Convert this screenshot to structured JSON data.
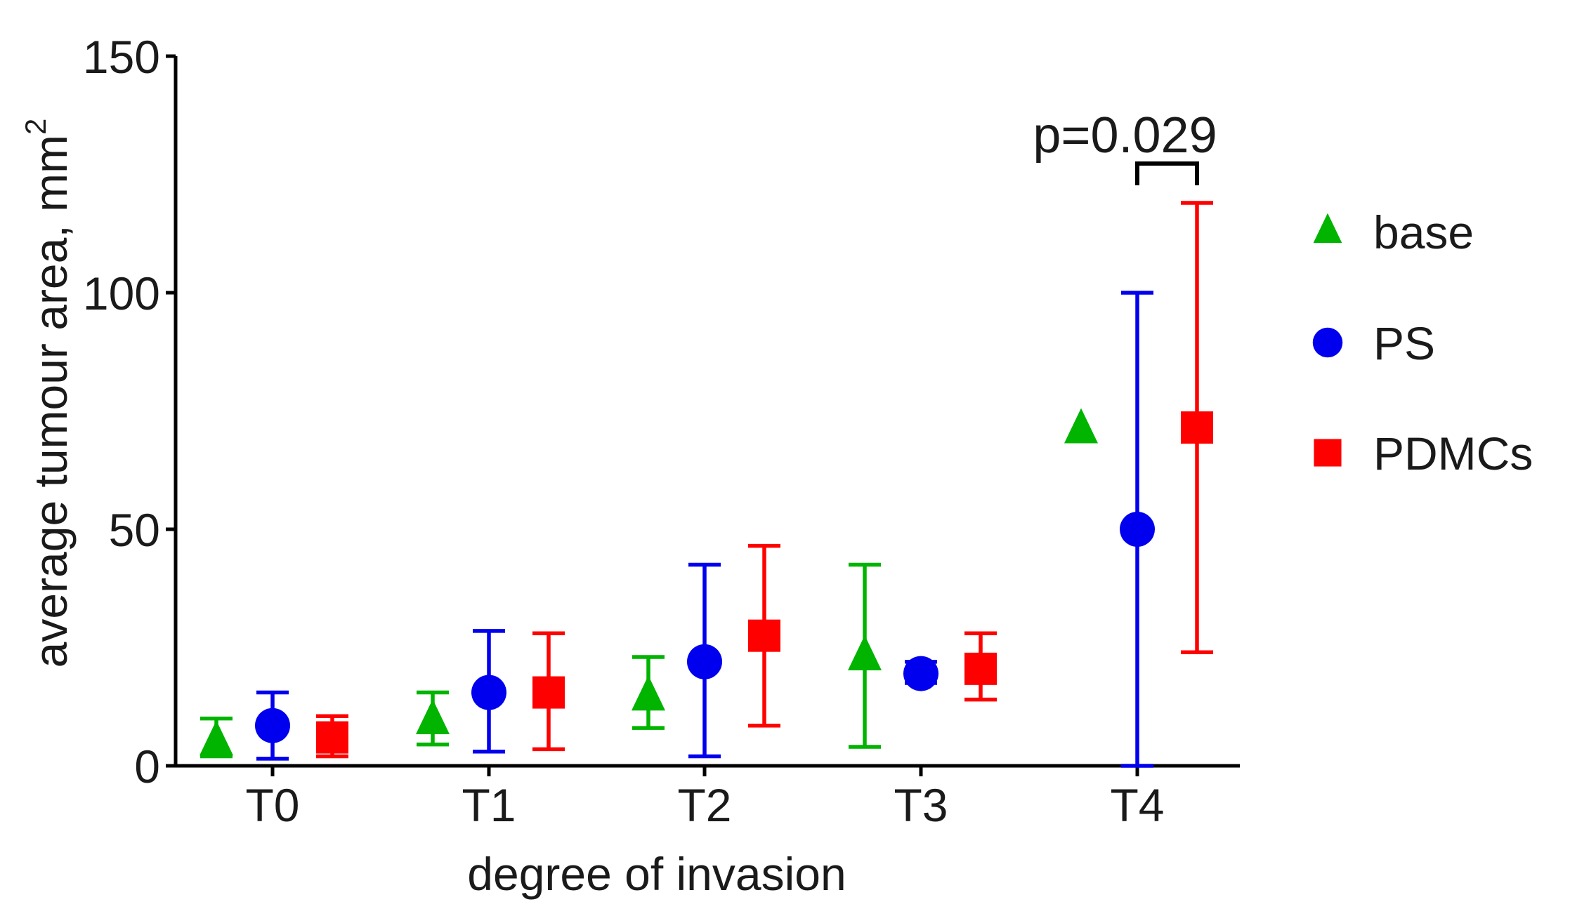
{
  "chart_data": {
    "type": "scatter",
    "categories": [
      "T0",
      "T1",
      "T2",
      "T3",
      "T4"
    ],
    "xlabel": "degree of invasion",
    "ylabel": "average tumour area, mm",
    "ylabel_superscript": "2",
    "ylim": [
      0,
      150
    ],
    "yticks": [
      "0",
      "50",
      "100",
      "150"
    ],
    "grid": false,
    "legend_position": "right",
    "series": [
      {
        "name": "base",
        "color": "#00b400",
        "marker": "triangle",
        "values": [
          5,
          9.5,
          14.5,
          23,
          71
        ],
        "err_low": [
          2,
          4.5,
          8,
          4,
          null
        ],
        "err_high": [
          10,
          15.5,
          23,
          42.5,
          null
        ]
      },
      {
        "name": "PS",
        "color": "#0000ee",
        "marker": "circle",
        "values": [
          8.5,
          15.5,
          22,
          19.5,
          50
        ],
        "err_low": [
          1.5,
          3,
          2,
          17.5,
          0
        ],
        "err_high": [
          15.5,
          28.5,
          42.5,
          22,
          100
        ]
      },
      {
        "name": "PDMCs",
        "color": "#ff0000",
        "marker": "square",
        "values": [
          6,
          15.5,
          27.5,
          20.5,
          71.5
        ],
        "err_low": [
          2,
          3.5,
          8.5,
          14,
          24
        ],
        "err_high": [
          10.5,
          28,
          46.5,
          28,
          119
        ]
      }
    ],
    "annotations": [
      {
        "text": "p=0.029",
        "category": "T4",
        "between": [
          "PS",
          "PDMCs"
        ]
      }
    ]
  }
}
